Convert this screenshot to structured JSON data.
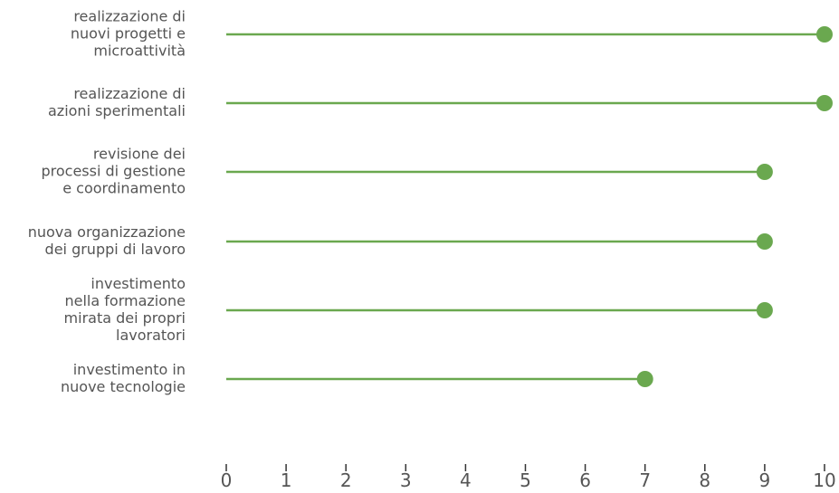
{
  "chart_data": {
    "type": "lollipop",
    "orientation": "horizontal",
    "categories": [
      [
        "realizzazione di",
        "nuovi progetti e",
        "microattività"
      ],
      [
        "realizzazione di",
        "azioni sperimentali"
      ],
      [
        "revisione dei",
        "processi di gestione",
        "e coordinamento"
      ],
      [
        "nuova organizzazione",
        "dei gruppi di lavoro"
      ],
      [
        "investimento",
        "nella formazione",
        "mirata dei propri",
        "lavoratori"
      ],
      [
        "investimento in",
        "nuove tecnologie"
      ]
    ],
    "values": [
      10,
      10,
      9,
      9,
      9,
      7
    ],
    "xlim": [
      0,
      10
    ],
    "xticks": [
      "0",
      "1",
      "2",
      "3",
      "4",
      "5",
      "6",
      "7",
      "8",
      "9",
      "10"
    ],
    "title": "",
    "xlabel": "",
    "ylabel": "",
    "grid": false,
    "legend": "none",
    "colors": {
      "marker": "#6aa84f",
      "line": "#6aa84f",
      "text": "#555555",
      "axis": "#333333"
    }
  }
}
